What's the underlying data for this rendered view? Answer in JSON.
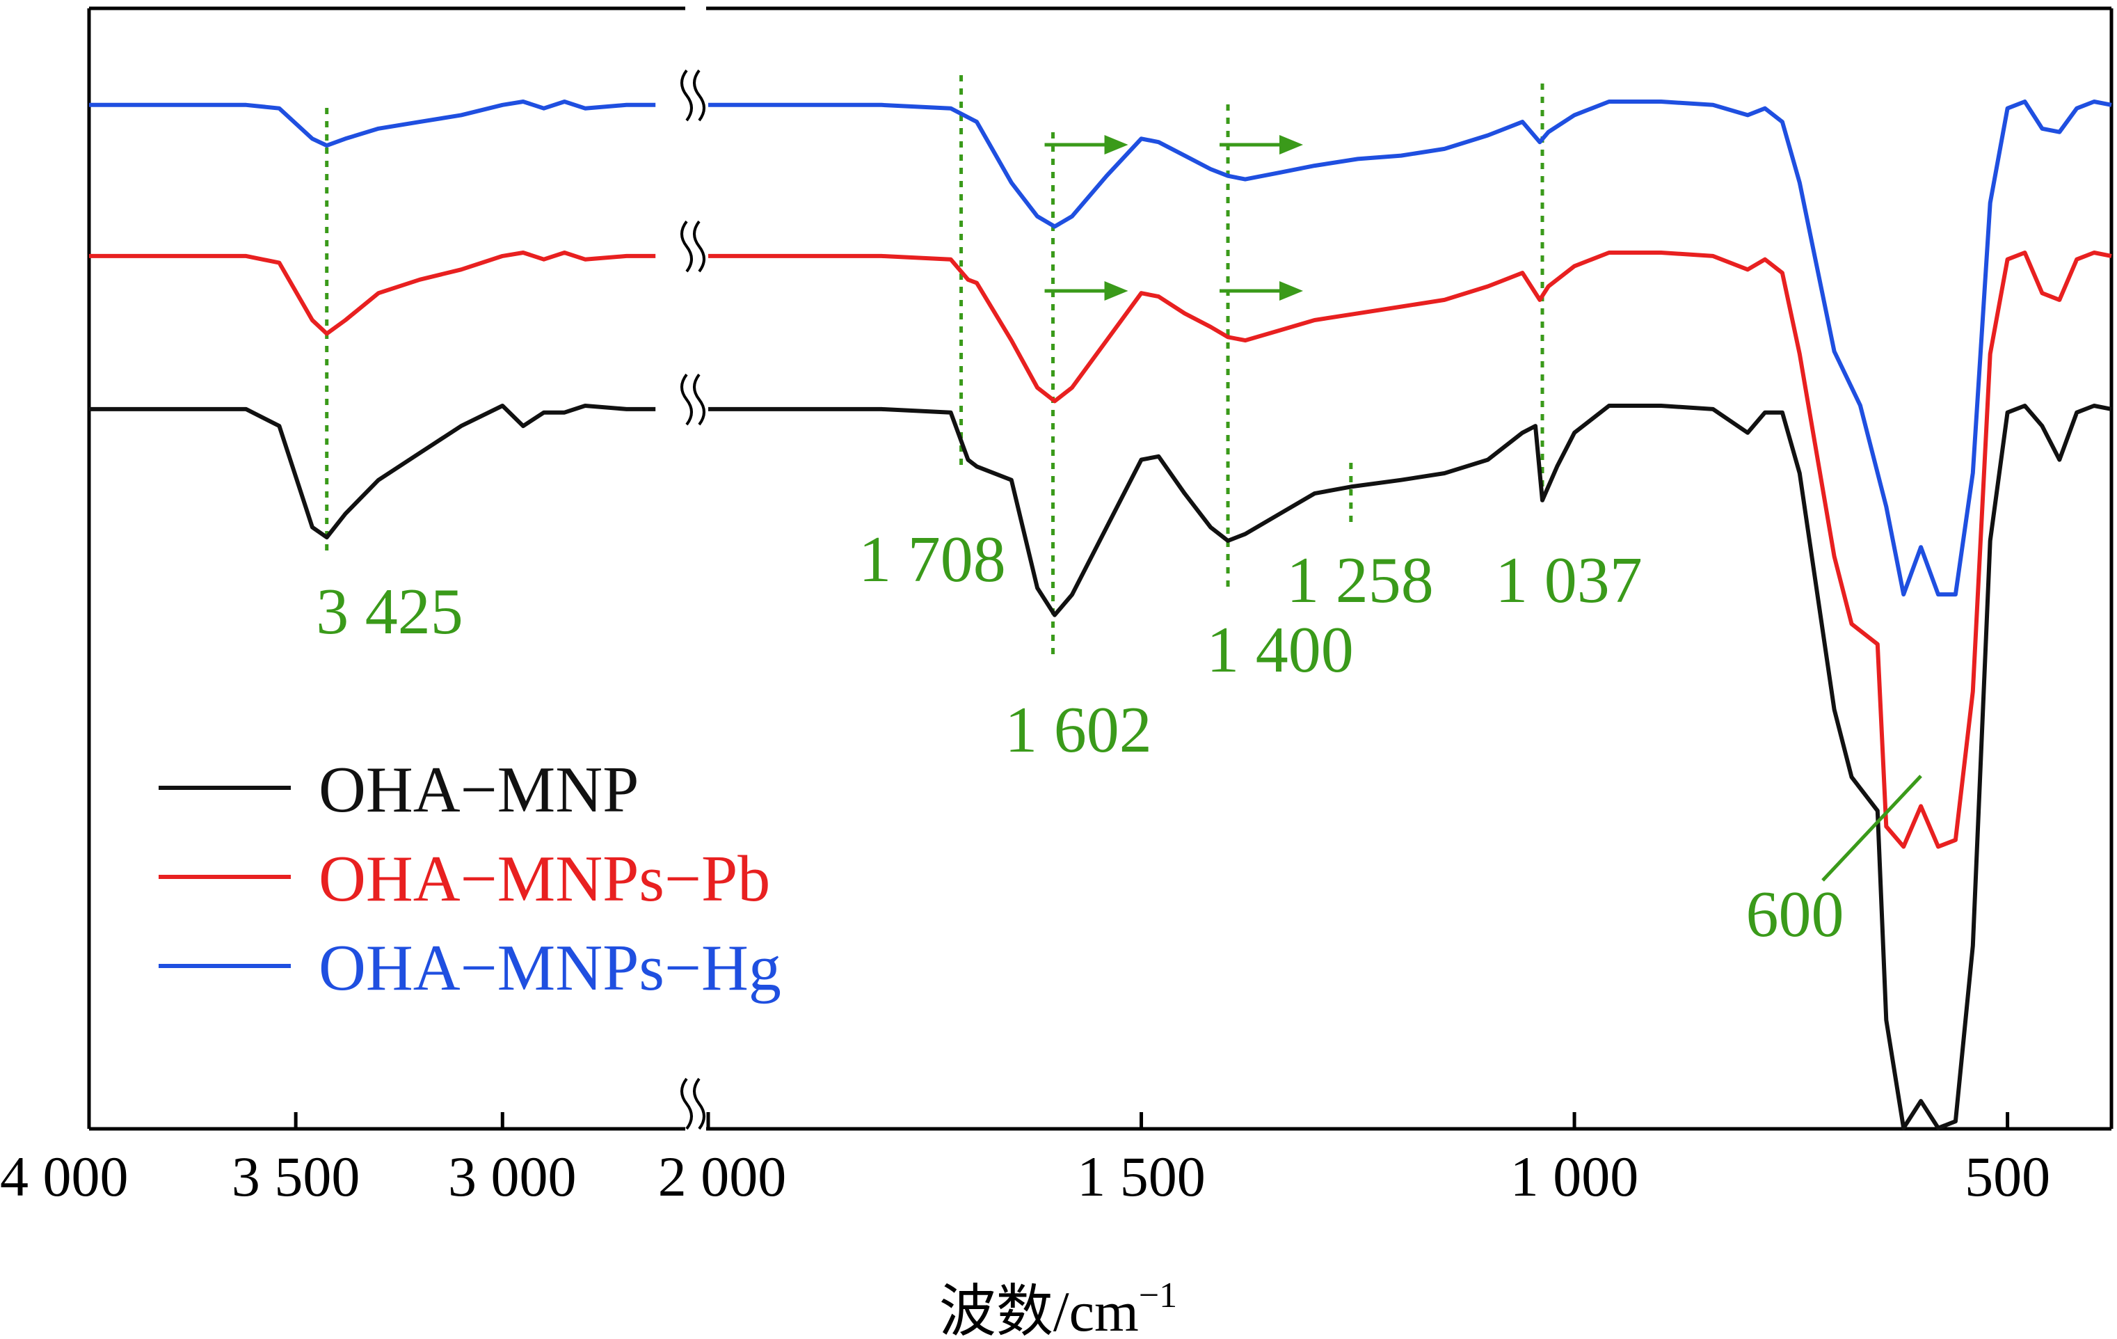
{
  "chart_data": {
    "type": "line",
    "title": "",
    "xlabel": "波数/cm",
    "xlabel_superscript": "−1",
    "ylabel": "",
    "axis_break": true,
    "x_segments": [
      {
        "range": [
          4000,
          2600
        ]
      },
      {
        "range": [
          2000,
          380
        ]
      }
    ],
    "xticks": [
      {
        "value": 4000,
        "label": "4 000"
      },
      {
        "value": 3500,
        "label": "3 500"
      },
      {
        "value": 3000,
        "label": "3 000"
      },
      {
        "value": 2000,
        "label": "2 000"
      },
      {
        "value": 1500,
        "label": "1 500"
      },
      {
        "value": 1000,
        "label": "1 000"
      },
      {
        "value": 500,
        "label": "500"
      }
    ],
    "grid": false,
    "legend_position": "bottom-left",
    "series": [
      {
        "name": "OHA−MNPs−Hg",
        "color": "#1f4fe0",
        "x": [
          4000,
          3800,
          3620,
          3540,
          3460,
          3425,
          3380,
          3300,
          3200,
          3100,
          3000,
          2950,
          2900,
          2850,
          2800,
          2700,
          2630,
          2000,
          1900,
          1800,
          1720,
          1690,
          1650,
          1620,
          1600,
          1580,
          1540,
          1500,
          1480,
          1450,
          1420,
          1400,
          1380,
          1340,
          1300,
          1250,
          1200,
          1150,
          1100,
          1060,
          1040,
          1030,
          1000,
          960,
          900,
          840,
          800,
          780,
          760,
          740,
          700,
          670,
          640,
          620,
          600,
          580,
          560,
          540,
          520,
          500,
          480,
          460,
          440,
          420,
          400,
          380
        ],
        "y": [
          -0.05,
          -0.05,
          -0.05,
          -0.1,
          -0.55,
          -0.65,
          -0.55,
          -0.4,
          -0.3,
          -0.2,
          -0.05,
          0.0,
          -0.1,
          0.0,
          -0.1,
          -0.05,
          -0.05,
          -0.05,
          -0.05,
          -0.05,
          -0.1,
          -0.3,
          -1.2,
          -1.7,
          -1.85,
          -1.7,
          -1.1,
          -0.55,
          -0.6,
          -0.8,
          -1.0,
          -1.1,
          -1.15,
          -1.05,
          -0.95,
          -0.85,
          -0.8,
          -0.7,
          -0.5,
          -0.3,
          -0.6,
          -0.45,
          -0.2,
          0.0,
          0.0,
          -0.05,
          -0.2,
          -0.1,
          -0.3,
          -1.2,
          -3.7,
          -4.5,
          -6.0,
          -7.3,
          -6.6,
          -7.3,
          -7.3,
          -5.5,
          -1.5,
          -0.1,
          0.0,
          -0.4,
          -0.45,
          -0.1,
          0.0,
          -0.05
        ]
      },
      {
        "name": "OHA−MNPs−Pb",
        "color": "#e82020",
        "x": [
          4000,
          3800,
          3620,
          3540,
          3460,
          3425,
          3380,
          3300,
          3200,
          3100,
          3000,
          2950,
          2900,
          2850,
          2800,
          2700,
          2630,
          2000,
          1900,
          1800,
          1720,
          1700,
          1690,
          1650,
          1620,
          1600,
          1580,
          1540,
          1500,
          1480,
          1450,
          1420,
          1400,
          1380,
          1340,
          1300,
          1250,
          1200,
          1150,
          1100,
          1060,
          1040,
          1030,
          1000,
          960,
          900,
          840,
          800,
          780,
          760,
          740,
          700,
          680,
          650,
          640,
          620,
          600,
          580,
          560,
          540,
          520,
          500,
          480,
          460,
          440,
          420,
          400,
          380
        ],
        "y": [
          -0.05,
          -0.05,
          -0.05,
          -0.15,
          -1.0,
          -1.2,
          -1.0,
          -0.6,
          -0.4,
          -0.25,
          -0.05,
          0.0,
          -0.1,
          0.0,
          -0.1,
          -0.05,
          -0.05,
          -0.05,
          -0.05,
          -0.05,
          -0.1,
          -0.4,
          -0.45,
          -1.3,
          -2.0,
          -2.2,
          -2.0,
          -1.3,
          -0.6,
          -0.65,
          -0.9,
          -1.1,
          -1.25,
          -1.3,
          -1.15,
          -1.0,
          -0.9,
          -0.8,
          -0.7,
          -0.5,
          -0.3,
          -0.7,
          -0.5,
          -0.2,
          0.0,
          0.0,
          -0.05,
          -0.25,
          -0.1,
          -0.3,
          -1.5,
          -4.5,
          -5.5,
          -5.8,
          -8.5,
          -8.8,
          -8.2,
          -8.8,
          -8.7,
          -6.5,
          -1.5,
          -0.1,
          0.0,
          -0.6,
          -0.7,
          -0.1,
          0.0,
          -0.05
        ]
      },
      {
        "name": "OHA−MNP",
        "color": "#111111",
        "x": [
          4000,
          3800,
          3620,
          3540,
          3460,
          3425,
          3380,
          3300,
          3200,
          3100,
          3000,
          2950,
          2900,
          2850,
          2800,
          2700,
          2630,
          2000,
          1900,
          1800,
          1720,
          1700,
          1690,
          1650,
          1620,
          1600,
          1580,
          1540,
          1500,
          1480,
          1450,
          1420,
          1400,
          1380,
          1340,
          1300,
          1258,
          1200,
          1150,
          1100,
          1060,
          1045,
          1037,
          1020,
          1000,
          960,
          900,
          840,
          800,
          780,
          760,
          740,
          700,
          680,
          650,
          640,
          620,
          600,
          580,
          560,
          540,
          520,
          500,
          480,
          460,
          440,
          420,
          400,
          380
        ],
        "y": [
          -0.05,
          -0.05,
          -0.05,
          -0.3,
          -1.8,
          -1.95,
          -1.6,
          -1.1,
          -0.7,
          -0.3,
          0.0,
          -0.3,
          -0.1,
          -0.1,
          0.0,
          -0.05,
          -0.05,
          -0.05,
          -0.05,
          -0.05,
          -0.1,
          -0.8,
          -0.9,
          -1.1,
          -2.7,
          -3.1,
          -2.8,
          -1.8,
          -0.8,
          -0.75,
          -1.3,
          -1.8,
          -2.0,
          -1.9,
          -1.6,
          -1.3,
          -1.2,
          -1.1,
          -1.0,
          -0.8,
          -0.4,
          -0.3,
          -1.4,
          -0.9,
          -0.4,
          0.0,
          0.0,
          -0.05,
          -0.4,
          -0.1,
          -0.1,
          -1.0,
          -4.5,
          -5.5,
          -6.0,
          -9.1,
          -10.7,
          -10.3,
          -10.7,
          -10.6,
          -8.0,
          -2.0,
          -0.1,
          0.0,
          -0.3,
          -0.8,
          -0.1,
          0.0,
          -0.05
        ]
      }
    ],
    "annotations": [
      {
        "label": "3 425",
        "x": 3425
      },
      {
        "label": "1 708",
        "x": 1708
      },
      {
        "label": "1 602",
        "x": 1602
      },
      {
        "label": "1 400",
        "x": 1400
      },
      {
        "label": "1 258",
        "x": 1258
      },
      {
        "label": "1 037",
        "x": 1037
      },
      {
        "label": "600",
        "x": 600
      }
    ],
    "annotation_color": "#3a9a1a",
    "shift_arrows": [
      {
        "near": 1602
      },
      {
        "near": 1400
      }
    ]
  }
}
